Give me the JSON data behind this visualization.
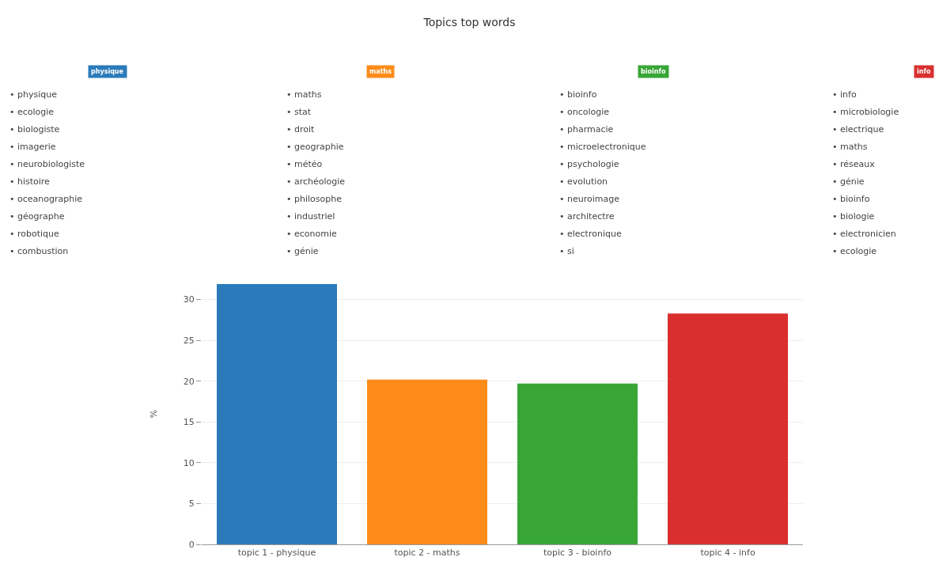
{
  "chart_data": {
    "type": "bar",
    "title": "Topics top words",
    "ylabel": "%",
    "categories": [
      "topic 1 - physique",
      "topic 2 - maths",
      "topic 3 - bioinfo",
      "topic 4 - info"
    ],
    "values": [
      31.9,
      20.2,
      19.7,
      28.3
    ],
    "colors": [
      "#2b7bba",
      "#fd8c1a",
      "#37a637",
      "#d9302f"
    ],
    "ylim": [
      0,
      32
    ],
    "yticks": [
      0,
      5,
      10,
      15,
      20,
      25,
      30
    ],
    "grid": "y",
    "annotations": [
      "physique",
      "• physique",
      "• ecologie",
      "• biologiste",
      "• imagerie",
      "• neurobiologiste",
      "• histoire",
      "• oceanographie",
      "• géographe",
      "• robotique",
      "• combustion",
      "maths",
      "• maths",
      "• stat",
      "• droit",
      "• geographie",
      "• météo",
      "• archéologie",
      "• philosophe",
      "• industriel",
      "• economie",
      "• génie",
      "bioinfo",
      "• bioinfo",
      "• oncologie",
      "• pharmacie",
      "• microelectronique",
      "• psychologie",
      "• evolution",
      "• neuroimage",
      "• architectre",
      "• electronique",
      "• si",
      "info",
      "• info",
      "• microbiologie",
      "• electrique",
      "• maths",
      "• réseaux",
      "• génie",
      "• bioinfo",
      "• biologie",
      "• electronicien",
      "• ecologie"
    ]
  }
}
